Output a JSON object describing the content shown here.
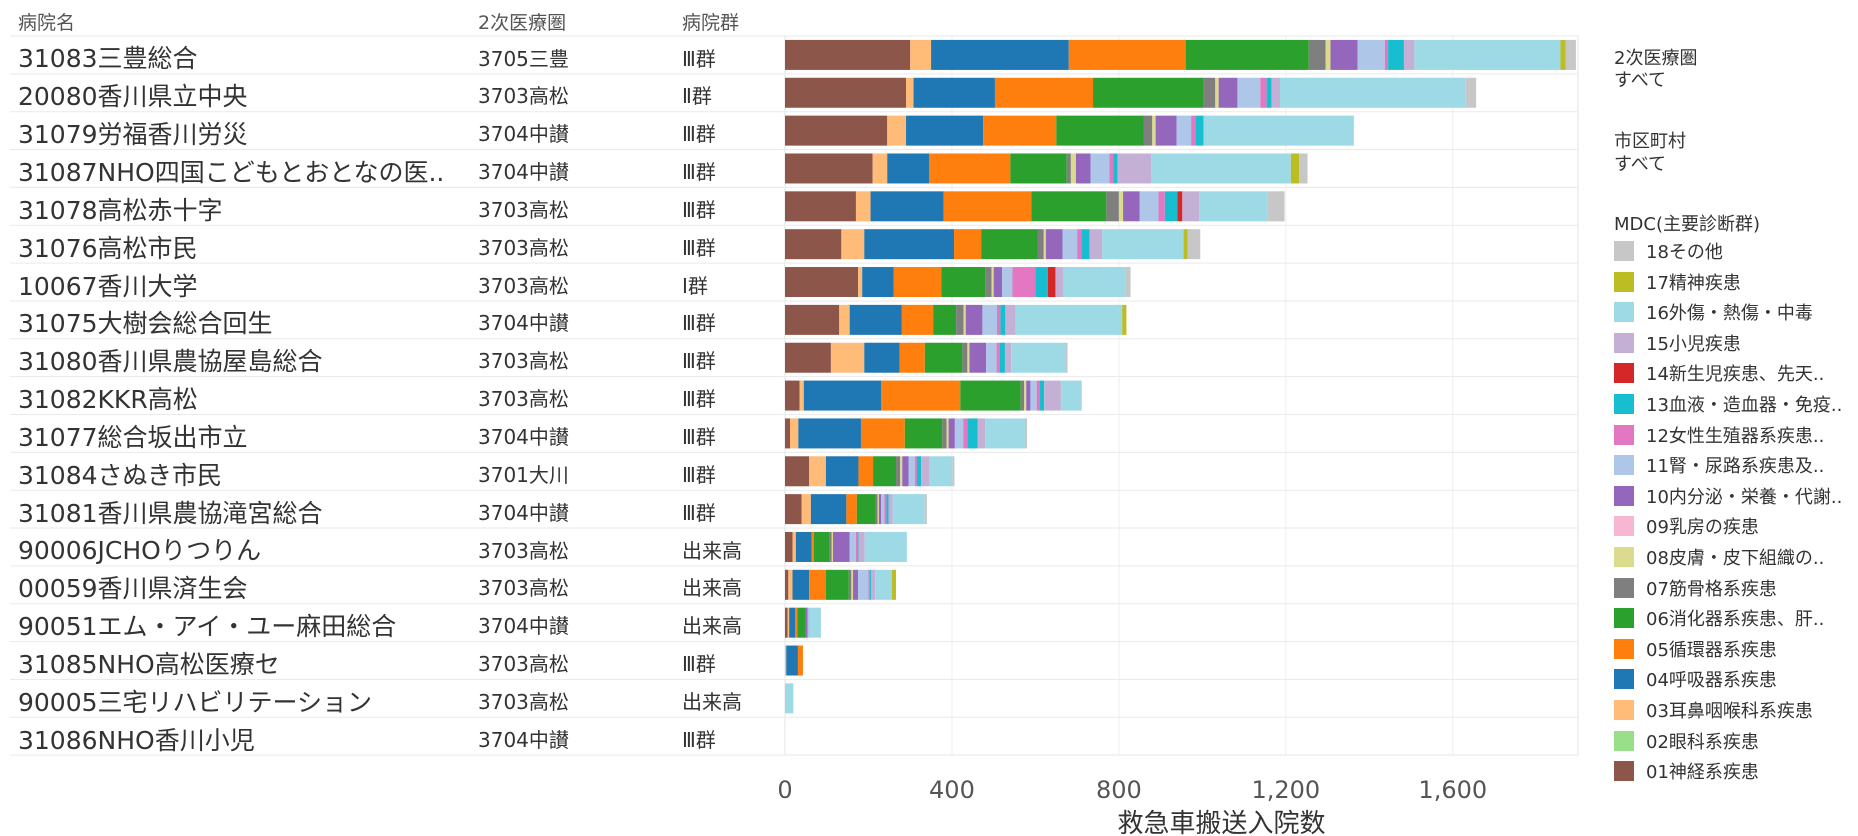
{
  "headers": {
    "hospital": "病院名",
    "area": "2次医療圏",
    "group": "病院群"
  },
  "filters": [
    {
      "title": "2次医療圏",
      "value": "すべて"
    },
    {
      "title": "市区町村",
      "value": "すべて"
    }
  ],
  "legend_title": "MDC(主要診断群)",
  "chart_data": {
    "type": "bar",
    "orientation": "horizontal",
    "stacked": true,
    "xlabel": "救急車搬送入院数",
    "xlim": [
      0,
      1900
    ],
    "xticks": [
      0,
      400,
      800,
      1200,
      1600
    ],
    "xtick_labels": [
      "0",
      "400",
      "800",
      "1,200",
      "1,600"
    ],
    "grid": "vertical",
    "categories": [
      "31083三豊総合",
      "20080香川県立中央",
      "31079労福香川労災",
      "31087NHO四国こどもとおとなの医..",
      "31078高松赤十字",
      "31076高松市民",
      "10067香川大学",
      "31075大樹会総合回生",
      "31080香川県農協屋島総合",
      "31082KKR高松",
      "31077総合坂出市立",
      "31084さぬき市民",
      "31081香川県農協滝宮総合",
      "90006JCHOりつりん",
      "00059香川県済生会",
      "90051エム・アイ・ユー麻田総合",
      "31085NHO高松医療セ",
      "90005三宅リハビリテーション",
      "31086NHO香川小児"
    ],
    "areas": [
      "3705三豊",
      "3703高松",
      "3704中讃",
      "3704中讃",
      "3703高松",
      "3703高松",
      "3703高松",
      "3704中讃",
      "3703高松",
      "3703高松",
      "3704中讃",
      "3701大川",
      "3704中讃",
      "3703高松",
      "3703高松",
      "3704中讃",
      "3703高松",
      "3703高松",
      "3704中讃"
    ],
    "groups": [
      "Ⅲ群",
      "Ⅱ群",
      "Ⅲ群",
      "Ⅲ群",
      "Ⅲ群",
      "Ⅲ群",
      "Ⅰ群",
      "Ⅲ群",
      "Ⅲ群",
      "Ⅲ群",
      "Ⅲ群",
      "Ⅲ群",
      "Ⅲ群",
      "出来高",
      "出来高",
      "出来高",
      "Ⅲ群",
      "出来高",
      "Ⅲ群"
    ],
    "series": [
      {
        "name": "01神経系疾患",
        "color": "#8c564b",
        "values": [
          300,
          290,
          245,
          210,
          170,
          135,
          175,
          130,
          110,
          35,
          12,
          58,
          40,
          18,
          8,
          6,
          0,
          0,
          0
        ]
      },
      {
        "name": "02眼科系疾患",
        "color": "#98df8a",
        "values": [
          0,
          0,
          0,
          0,
          0,
          0,
          0,
          0,
          0,
          0,
          0,
          0,
          0,
          0,
          0,
          0,
          0,
          0,
          0
        ]
      },
      {
        "name": "03耳鼻咽喉科系疾患",
        "color": "#ffbb78",
        "values": [
          50,
          18,
          45,
          35,
          35,
          55,
          10,
          25,
          80,
          10,
          20,
          40,
          22,
          8,
          10,
          4,
          3,
          0,
          0
        ]
      },
      {
        "name": "04呼吸器系疾患",
        "color": "#1f77b4",
        "values": [
          330,
          195,
          185,
          100,
          175,
          215,
          75,
          125,
          85,
          185,
          150,
          78,
          85,
          38,
          40,
          14,
          28,
          0,
          0
        ]
      },
      {
        "name": "05循環器系疾患",
        "color": "#ff7f0e",
        "values": [
          280,
          235,
          175,
          195,
          210,
          65,
          115,
          75,
          60,
          190,
          105,
          35,
          25,
          5,
          40,
          6,
          12,
          0,
          0
        ]
      },
      {
        "name": "06消化器系疾患、肝..",
        "color": "#2ca02c",
        "values": [
          295,
          265,
          210,
          135,
          180,
          135,
          105,
          55,
          90,
          145,
          90,
          55,
          45,
          38,
          55,
          20,
          0,
          0,
          0
        ]
      },
      {
        "name": "07筋骨格系疾患",
        "color": "#7f7f7f",
        "values": [
          40,
          28,
          20,
          10,
          30,
          15,
          15,
          18,
          12,
          8,
          10,
          10,
          5,
          5,
          6,
          0,
          0,
          0,
          0
        ]
      },
      {
        "name": "08皮膚・皮下組織の..",
        "color": "#dbdb8d",
        "values": [
          12,
          8,
          8,
          12,
          10,
          5,
          5,
          5,
          5,
          5,
          5,
          5,
          3,
          3,
          4,
          0,
          0,
          0,
          0
        ]
      },
      {
        "name": "09乳房の疾患",
        "color": "#f7b6d2",
        "values": [
          0,
          0,
          0,
          0,
          0,
          0,
          0,
          0,
          0,
          0,
          0,
          0,
          0,
          0,
          0,
          0,
          0,
          0,
          0
        ]
      },
      {
        "name": "10内分泌・栄養・代謝..",
        "color": "#9467bd",
        "values": [
          65,
          45,
          50,
          35,
          40,
          40,
          20,
          40,
          40,
          10,
          15,
          15,
          5,
          40,
          12,
          4,
          0,
          0,
          0
        ]
      },
      {
        "name": "11腎・尿路系疾患及..",
        "color": "#aec7e8",
        "values": [
          65,
          55,
          35,
          45,
          45,
          35,
          25,
          35,
          25,
          15,
          20,
          15,
          8,
          15,
          25,
          6,
          0,
          0,
          0
        ]
      },
      {
        "name": "12女性生殖器系疾患..",
        "color": "#e377c2",
        "values": [
          8,
          15,
          10,
          10,
          15,
          10,
          55,
          8,
          8,
          8,
          10,
          5,
          5,
          3,
          3,
          0,
          0,
          0,
          0
        ]
      },
      {
        "name": "13血液・造血器・免疫..",
        "color": "#17becf",
        "values": [
          38,
          12,
          20,
          10,
          30,
          20,
          30,
          12,
          12,
          10,
          25,
          10,
          5,
          3,
          3,
          0,
          0,
          0,
          0
        ]
      },
      {
        "name": "14新生児疾患、先天..",
        "color": "#d62728",
        "values": [
          0,
          0,
          0,
          0,
          12,
          0,
          18,
          0,
          0,
          0,
          0,
          0,
          0,
          0,
          0,
          0,
          0,
          0,
          0
        ]
      },
      {
        "name": "15小児疾患",
        "color": "#c5b0d5",
        "values": [
          25,
          20,
          0,
          80,
          40,
          30,
          18,
          25,
          15,
          40,
          18,
          20,
          10,
          15,
          10,
          0,
          0,
          0,
          0
        ]
      },
      {
        "name": "16外傷・熱傷・中毒",
        "color": "#9edae5",
        "values": [
          350,
          445,
          360,
          335,
          165,
          195,
          150,
          255,
          130,
          50,
          95,
          55,
          77,
          101,
          40,
          26,
          0,
          20,
          0
        ]
      },
      {
        "name": "17精神疾患",
        "color": "#bcbd22",
        "values": [
          12,
          0,
          0,
          20,
          0,
          10,
          0,
          10,
          0,
          0,
          0,
          0,
          0,
          0,
          10,
          0,
          0,
          0,
          0
        ]
      },
      {
        "name": "18その他",
        "color": "#c7c7c7",
        "values": [
          25,
          25,
          0,
          20,
          40,
          30,
          12,
          0,
          5,
          0,
          5,
          5,
          5,
          0,
          0,
          0,
          0,
          0,
          0
        ]
      }
    ]
  }
}
